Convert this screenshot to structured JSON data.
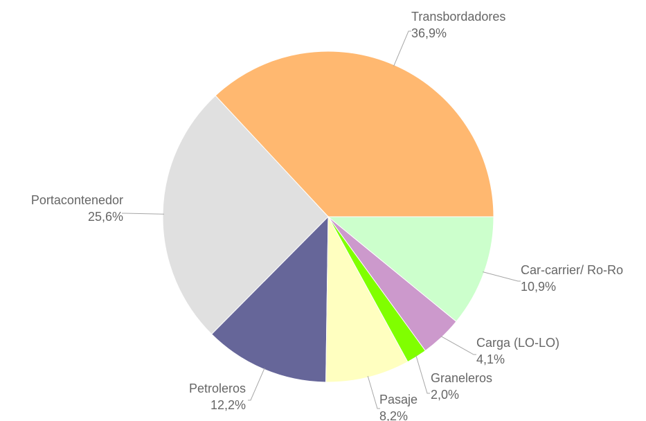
{
  "chart_data": {
    "type": "pie",
    "categories": [
      "Transbordadores",
      "Portacontenedor",
      "Petroleros",
      "Pasaje",
      "Graneleros",
      "Carga (LO-LO)",
      "Car-carrier/ Ro-Ro"
    ],
    "values": [
      36.9,
      25.6,
      12.2,
      8.2,
      2.0,
      4.1,
      10.9
    ],
    "value_labels": [
      "36,9%",
      "25,6%",
      "12,2%",
      "8,2%",
      "2,0%",
      "4,1%",
      "10,9%"
    ],
    "colors": [
      "#ffb870",
      "#e0e0e0",
      "#666699",
      "#ffffc0",
      "#80ff00",
      "#cc99cc",
      "#ccffcc"
    ]
  }
}
